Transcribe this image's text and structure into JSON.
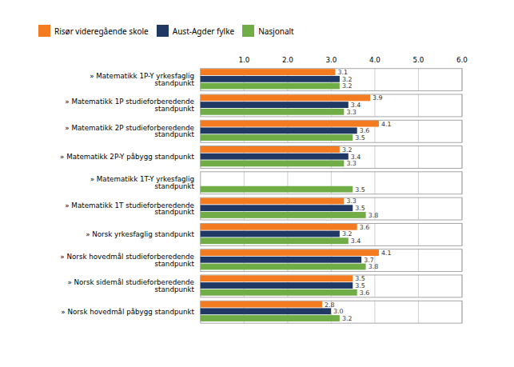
{
  "chart_data": {
    "type": "bar",
    "orientation": "horizontal",
    "categories": [
      "» Matematikk 1P-Y yrkesfaglig\nstandpunkt",
      "» Matematikk 1P studieforberedende\nstandpunkt",
      "» Matematikk 2P studieforberedende\nstandpunkt",
      "» Matematikk 2P-Y påbygg standpunkt",
      "» Matematikk 1T-Y yrkesfaglig\nstandpunkt",
      "» Matematikk 1T studieforberedende\nstandpunkt",
      "» Norsk yrkesfaglig standpunkt",
      "» Norsk hovedmål studieforberedende\nstandpunkt",
      "» Norsk sidemål studieforberedende\nstandpunkt",
      "» Norsk hovedmål påbygg standpunkt"
    ],
    "series": [
      {
        "name": "Risør videregående skole",
        "color": "#F47B20",
        "values": [
          3.1,
          3.9,
          4.1,
          3.2,
          null,
          3.3,
          3.6,
          4.1,
          3.5,
          2.8
        ]
      },
      {
        "name": "Aust-Agder fylke",
        "color": "#1F3864",
        "values": [
          3.2,
          3.4,
          3.6,
          3.4,
          null,
          3.5,
          3.2,
          3.7,
          3.5,
          3.0
        ]
      },
      {
        "name": "Nasjonalt",
        "color": "#70AD47",
        "values": [
          3.2,
          3.3,
          3.5,
          3.3,
          3.5,
          3.8,
          3.4,
          3.8,
          3.6,
          3.2
        ]
      }
    ],
    "xlim": [
      0,
      6
    ],
    "xticks": [
      1,
      2,
      3,
      4,
      5,
      6
    ],
    "grid": true,
    "data_labels": true,
    "legend": "top"
  }
}
